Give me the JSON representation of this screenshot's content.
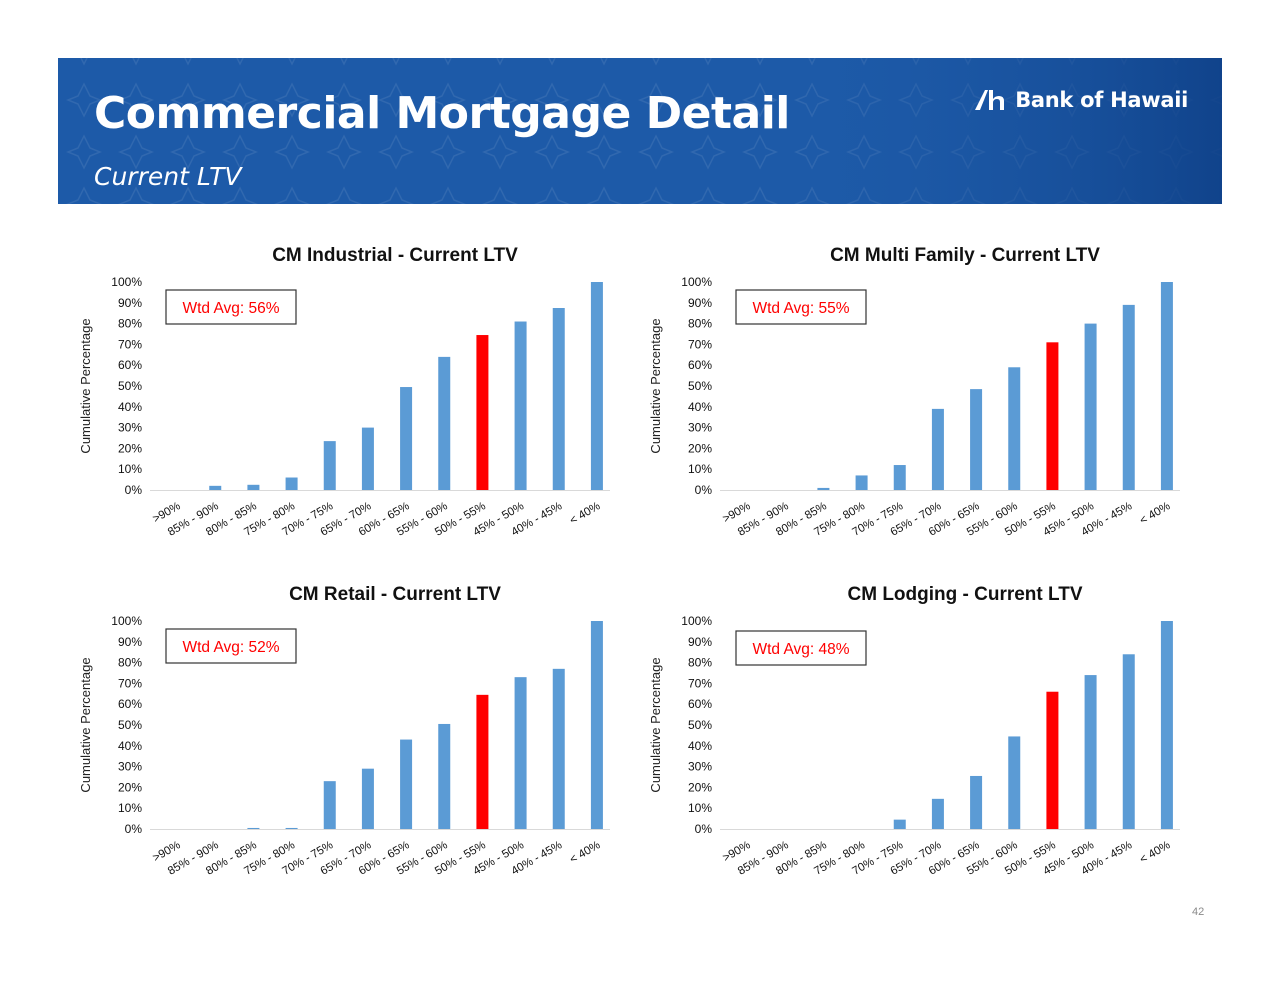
{
  "header": {
    "title": "Commercial Mortgage Detail",
    "subtitle": "Current LTV",
    "brand": "Bank of Hawaii",
    "brand_icon": "bank-of-hawaii-logo-icon",
    "background_color": "#1d5aa8"
  },
  "colors": {
    "bar": "#5b9bd5",
    "highlight": "#ff0000",
    "avg_text": "#ff0000"
  },
  "footer": {
    "page_number": "42"
  },
  "chart_data": [
    {
      "type": "bar",
      "title": "CM Industrial - Current LTV",
      "ylabel": "Cumulative Percentage",
      "xlabel": "",
      "annotation": "Wtd Avg: 56%",
      "highlight_index": 8,
      "categories": [
        ">90%",
        "85% - 90%",
        "80% - 85%",
        "75% - 80%",
        "70% - 75%",
        "65% - 70%",
        "60% - 65%",
        "55% - 60%",
        "50% - 55%",
        "45% - 50%",
        "40% - 45%",
        "< 40%"
      ],
      "values": [
        0,
        2,
        2.5,
        6,
        23.5,
        30,
        49.5,
        64,
        74.5,
        81,
        87.5,
        100
      ],
      "ylim": [
        0,
        100
      ],
      "yticks": [
        "0%",
        "10%",
        "20%",
        "30%",
        "40%",
        "50%",
        "60%",
        "70%",
        "80%",
        "90%",
        "100%"
      ]
    },
    {
      "type": "bar",
      "title": "CM Multi Family - Current LTV",
      "ylabel": "Cumulative Percentage",
      "xlabel": "",
      "annotation": "Wtd Avg: 55%",
      "highlight_index": 8,
      "categories": [
        ">90%",
        "85% - 90%",
        "80% - 85%",
        "75% - 80%",
        "70% - 75%",
        "65% - 70%",
        "60% - 65%",
        "55% - 60%",
        "50% - 55%",
        "45% - 50%",
        "40% - 45%",
        "< 40%"
      ],
      "values": [
        0,
        0,
        1,
        7,
        12,
        39,
        48.5,
        59,
        71,
        80,
        89,
        100
      ],
      "ylim": [
        0,
        100
      ],
      "yticks": [
        "0%",
        "10%",
        "20%",
        "30%",
        "40%",
        "50%",
        "60%",
        "70%",
        "80%",
        "90%",
        "100%"
      ]
    },
    {
      "type": "bar",
      "title": "CM Retail - Current LTV",
      "ylabel": "Cumulative Percentage",
      "xlabel": "",
      "annotation": "Wtd Avg: 52%",
      "highlight_index": 8,
      "categories": [
        ">90%",
        "85% - 90%",
        "80% - 85%",
        "75% - 80%",
        "70% - 75%",
        "65% - 70%",
        "60% - 65%",
        "55% - 60%",
        "50% - 55%",
        "45% - 50%",
        "40% - 45%",
        "< 40%"
      ],
      "values": [
        0,
        0,
        0.5,
        0.5,
        23,
        29,
        43,
        50.5,
        64.5,
        73,
        77,
        100
      ],
      "ylim": [
        0,
        100
      ],
      "yticks": [
        "0%",
        "10%",
        "20%",
        "30%",
        "40%",
        "50%",
        "60%",
        "70%",
        "80%",
        "90%",
        "100%"
      ]
    },
    {
      "type": "bar",
      "title": "CM Lodging - Current LTV",
      "ylabel": "Cumulative Percentage",
      "xlabel": "",
      "annotation": "Wtd Avg: 48%",
      "highlight_index": 8,
      "categories": [
        ">90%",
        "85% - 90%",
        "80% - 85%",
        "75% - 80%",
        "70% - 75%",
        "65% - 70%",
        "60% - 65%",
        "55% - 60%",
        "50% - 55%",
        "45% - 50%",
        "40% - 45%",
        "< 40%"
      ],
      "values": [
        0,
        0,
        0,
        0,
        4.5,
        14.5,
        25.5,
        44.5,
        66,
        74,
        84,
        100
      ],
      "ylim": [
        0,
        100
      ],
      "yticks": [
        "0%",
        "10%",
        "20%",
        "30%",
        "40%",
        "50%",
        "60%",
        "70%",
        "80%",
        "90%",
        "100%"
      ]
    }
  ]
}
